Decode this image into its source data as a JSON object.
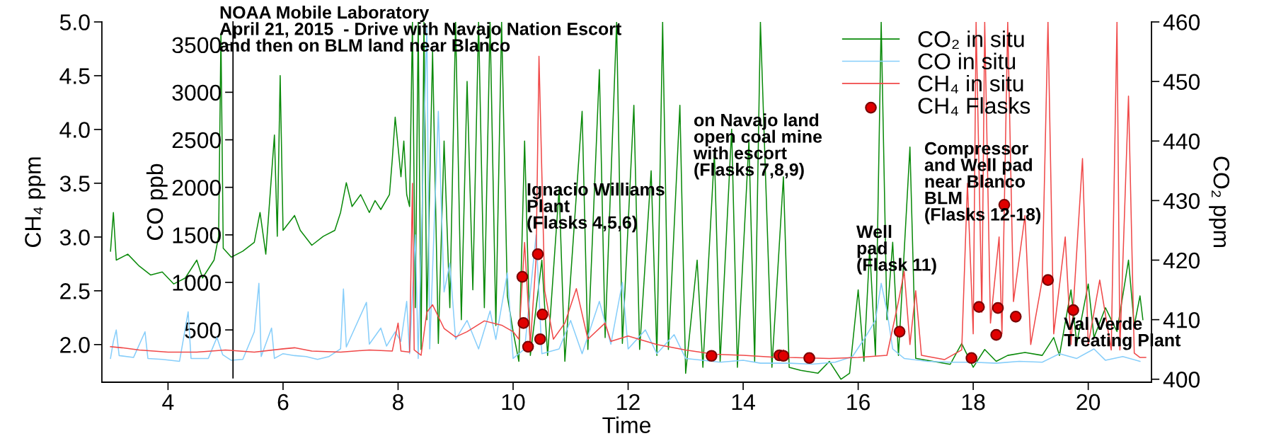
{
  "chart_data": {
    "type": "line",
    "title": "NOAA Mobile Laboratory\nApril 21, 2015  - Drive with Navajo Nation Escort\nand then on BLM land near Blanco",
    "xlabel": "Time",
    "ylabel": "CH₄ ppm",
    "y2label": "CO₂ ppm",
    "y3label": "CO ppb",
    "xlim": [
      2.85,
      21.1
    ],
    "xticks": [
      4,
      6,
      8,
      10,
      12,
      14,
      16,
      18,
      20
    ],
    "ylim": [
      1.65,
      5.0
    ],
    "yticks": [
      {
        "value": 2,
        "label": "2.0"
      },
      2.5,
      {
        "value": 3,
        "label": "3.0"
      },
      3.5,
      {
        "value": 4,
        "label": "4.0"
      },
      4.5,
      {
        "value": 5,
        "label": "5.0"
      }
    ],
    "y2lim": [
      399.5,
      460
    ],
    "y2ticks": [
      400,
      410,
      420,
      430,
      440,
      450,
      460
    ],
    "y3lim": [
      -50,
      3740
    ],
    "y3ticks": [
      500,
      1000,
      1500,
      2000,
      2500,
      3000,
      3500
    ],
    "legend": "top right",
    "marker": "none",
    "line_style": "solid",
    "annotations": [
      "Ignacio Williams\nPlant\n(Flasks 4,5,6)",
      "on Navajo land\nopen coal mine\nwith escort\n(Flasks 7,8,9)",
      "Well\npad\n(Flask 11)",
      "Compressor\nand Well pad\nnear Blanco\nBLM\n(Flasks 12-18)",
      "Val Verde\nTreating Plant"
    ],
    "series": [
      {
        "name": "CO₂ in situ",
        "axis": "y2",
        "color": "#0a8a0a",
        "x": [
          3.0,
          3.05,
          3.1,
          3.3,
          3.5,
          3.7,
          3.9,
          4.1,
          4.3,
          4.5,
          4.6,
          4.8,
          4.88,
          4.92,
          4.96,
          5.1,
          5.3,
          5.5,
          5.6,
          5.7,
          5.85,
          5.9,
          5.95,
          6.0,
          6.2,
          6.3,
          6.5,
          6.7,
          6.9,
          7.0,
          7.1,
          7.2,
          7.35,
          7.5,
          7.6,
          7.7,
          7.85,
          7.9,
          7.95,
          8.05,
          8.1,
          8.15,
          8.2,
          8.25,
          8.3,
          8.35,
          8.4,
          8.45,
          8.5,
          8.6,
          8.7,
          8.8,
          8.9,
          9.0,
          9.1,
          9.2,
          9.3,
          9.4,
          9.5,
          9.6,
          9.7,
          9.8,
          9.9,
          10.0,
          10.1,
          10.2,
          10.3,
          10.5,
          10.6,
          10.8,
          10.9,
          11.2,
          11.3,
          11.5,
          11.6,
          11.8,
          11.9,
          12.1,
          12.2,
          12.4,
          12.5,
          12.6,
          12.7,
          12.9,
          13.0,
          13.2,
          13.3,
          13.5,
          13.6,
          13.8,
          13.9,
          14.1,
          14.2,
          14.3,
          14.5,
          14.7,
          14.8,
          15.0,
          15.3,
          15.5,
          15.7,
          15.85,
          16.0,
          16.1,
          16.2,
          16.3,
          16.4,
          16.5,
          16.6,
          16.7,
          16.9,
          17.0,
          17.3,
          17.6,
          17.8,
          18.0,
          18.2,
          18.4,
          18.6,
          18.9,
          19.2,
          19.4,
          19.5,
          19.7,
          19.8,
          20.0,
          20.1,
          20.3,
          20.5,
          20.7,
          20.8,
          20.9,
          20.95
        ],
        "values": [
          421.5,
          428,
          420,
          421,
          419,
          417.5,
          418,
          416,
          417,
          420,
          417,
          420,
          424,
          458,
          422,
          420.5,
          421.5,
          423,
          428,
          421,
          441,
          424,
          451,
          425,
          427.5,
          425,
          422.5,
          424,
          425,
          428,
          433,
          429,
          431,
          428,
          430,
          428.5,
          431,
          437,
          444,
          434,
          440,
          431,
          429,
          460,
          412,
          460,
          405,
          460,
          410,
          455,
          406,
          440,
          412,
          460,
          410,
          450,
          415,
          460,
          412,
          460,
          409,
          460,
          414,
          408,
          403,
          440,
          404,
          420,
          404,
          432,
          403,
          445,
          405,
          452,
          407,
          460,
          406,
          446,
          405,
          435,
          404,
          460,
          405,
          446,
          401,
          420,
          402,
          438,
          403,
          442,
          402,
          440,
          403,
          460,
          402,
          434,
          402,
          401.5,
          401,
          403,
          400,
          401,
          415,
          403,
          422,
          404,
          460,
          410,
          423,
          404,
          439,
          403.5,
          403,
          402.5,
          406,
          402,
          405,
          403,
          404,
          404.5,
          404,
          407,
          404,
          415,
          406,
          416,
          407,
          412,
          408,
          420,
          409,
          414,
          410
        ]
      },
      {
        "name": "CO in situ",
        "axis": "y3",
        "color": "#87cefa",
        "x": [
          3.0,
          3.05,
          3.1,
          3.15,
          3.4,
          3.6,
          3.65,
          3.9,
          4.2,
          4.35,
          4.4,
          4.7,
          4.85,
          4.95,
          5.1,
          5.3,
          5.5,
          5.58,
          5.62,
          5.8,
          5.85,
          6.0,
          6.2,
          6.4,
          6.6,
          6.8,
          7.0,
          7.05,
          7.1,
          7.45,
          7.5,
          7.7,
          7.8,
          7.95,
          8.05,
          8.15,
          8.2,
          8.3,
          8.35,
          8.5,
          8.55,
          8.7,
          8.8,
          8.9,
          9.0,
          9.2,
          9.4,
          9.6,
          9.7,
          9.9,
          10.0,
          10.2,
          10.4,
          10.5,
          10.8,
          11.0,
          11.2,
          11.5,
          11.7,
          11.9,
          12.0,
          12.3,
          12.5,
          12.8,
          13.0,
          13.3,
          13.6,
          14.0,
          14.3,
          14.8,
          15.2,
          15.6,
          15.9,
          16.1,
          16.3,
          16.4,
          16.5,
          16.6,
          16.8,
          17.2,
          17.6,
          18.0,
          18.4,
          18.8,
          19.2,
          19.5,
          19.8,
          20.1,
          20.3,
          20.6,
          20.9
        ],
        "values": [
          200,
          380,
          500,
          230,
          210,
          480,
          200,
          190,
          170,
          690,
          200,
          200,
          420,
          240,
          180,
          190,
          480,
          990,
          220,
          520,
          200,
          250,
          230,
          220,
          190,
          220,
          300,
          930,
          320,
          790,
          350,
          520,
          330,
          480,
          380,
          800,
          250,
          1500,
          200,
          3700,
          300,
          2800,
          900,
          1200,
          400,
          600,
          300,
          700,
          400,
          1100,
          200,
          300,
          1500,
          250,
          300,
          600,
          250,
          800,
          350,
          1000,
          300,
          500,
          250,
          450,
          200,
          180,
          160,
          180,
          150,
          150,
          140,
          160,
          220,
          400,
          600,
          990,
          700,
          300,
          200,
          170,
          160,
          160,
          150,
          170,
          160,
          250,
          200,
          300,
          180,
          220,
          170
        ]
      },
      {
        "name": "CH₄ in situ",
        "axis": "y",
        "color": "#f04848",
        "x": [
          3.0,
          3.2,
          3.5,
          4.0,
          4.5,
          5.0,
          5.5,
          6.0,
          6.2,
          6.5,
          7.0,
          7.5,
          7.9,
          8.0,
          8.05,
          8.2,
          8.25,
          8.28,
          8.4,
          8.5,
          8.6,
          8.8,
          9.0,
          9.2,
          9.5,
          9.8,
          10.0,
          10.1,
          10.2,
          10.3,
          10.4,
          10.45,
          10.55,
          10.7,
          10.9,
          11.1,
          11.3,
          11.6,
          11.7,
          12.0,
          12.5,
          13.0,
          13.5,
          14.0,
          14.6,
          14.7,
          14.8,
          15.5,
          16.0,
          16.5,
          16.7,
          16.8,
          16.9,
          17.0,
          17.1,
          17.5,
          17.8,
          17.9,
          18.0,
          18.05,
          18.15,
          18.2,
          18.3,
          18.45,
          18.5,
          18.6,
          18.7,
          18.9,
          19.0,
          19.2,
          19.3,
          19.4,
          19.6,
          19.7,
          19.9,
          20.0,
          20.2,
          20.4,
          20.5,
          20.55,
          20.7,
          20.8,
          20.9,
          21.0
        ],
        "values": [
          1.98,
          1.97,
          1.95,
          1.93,
          1.93,
          1.95,
          1.93,
          1.96,
          1.97,
          1.94,
          1.93,
          1.95,
          1.94,
          2.2,
          1.94,
          1.93,
          3.5,
          1.95,
          1.9,
          2.3,
          2.37,
          2.15,
          2.07,
          2.12,
          2.22,
          2.18,
          2.12,
          2.05,
          2.95,
          2.0,
          2.8,
          4.68,
          2.5,
          2.05,
          2.2,
          2.52,
          2.05,
          2.2,
          2.03,
          2.08,
          2.0,
          1.95,
          1.91,
          1.9,
          1.88,
          1.95,
          1.88,
          1.87,
          1.88,
          1.9,
          2.4,
          2.68,
          2.0,
          2.5,
          1.9,
          1.86,
          1.95,
          3.5,
          2.1,
          5.0,
          2.3,
          5.0,
          2.2,
          3.0,
          2.1,
          5.0,
          2.4,
          3.2,
          2.0,
          2.6,
          5.0,
          2.1,
          3.0,
          2.0,
          3.73,
          2.0,
          2.6,
          1.95,
          5.0,
          1.95,
          4.31,
          1.92,
          1.88,
          1.88
        ]
      },
      {
        "name": "CH₄ Flasks",
        "type": "scatter",
        "axis": "y",
        "marker": "circle",
        "color": "#e00000",
        "x": [
          10.16,
          10.43,
          10.18,
          10.51,
          10.47,
          10.26,
          13.45,
          14.63,
          14.7,
          15.15,
          16.72,
          17.97,
          18.1,
          18.4,
          18.43,
          18.54,
          18.74,
          19.3,
          19.74
        ],
        "values": [
          2.63,
          2.84,
          2.2,
          2.28,
          2.05,
          1.98,
          1.895,
          1.9,
          1.895,
          1.875,
          2.12,
          1.875,
          2.35,
          2.09,
          2.34,
          3.3,
          2.26,
          2.6,
          2.32
        ]
      }
    ]
  }
}
